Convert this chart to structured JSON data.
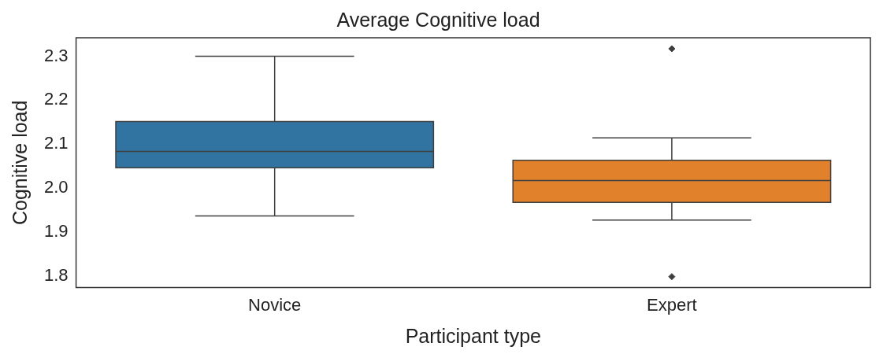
{
  "chart_data": {
    "type": "box",
    "title": "Average Cognitive load",
    "xlabel": "Participant type",
    "ylabel": "Cognitive load",
    "categories": [
      "Novice",
      "Expert"
    ],
    "colors": [
      "#3274a1",
      "#e1812c"
    ],
    "boxes": [
      {
        "low": 1.936,
        "q1": 2.046,
        "median": 2.083,
        "q3": 2.151,
        "high": 2.3
      },
      {
        "low": 1.927,
        "q1": 1.967,
        "median": 2.017,
        "q3": 2.063,
        "high": 2.114,
        "outliers": [
          2.317,
          1.798
        ]
      }
    ],
    "marker": "diamond",
    "ylim": [
      1.773,
      2.342
    ],
    "yticks": [
      1.8,
      1.9,
      {
        "value": 2,
        "label": "2.0"
      },
      2.1,
      2.2,
      2.3
    ],
    "grid": false,
    "legend": false
  }
}
